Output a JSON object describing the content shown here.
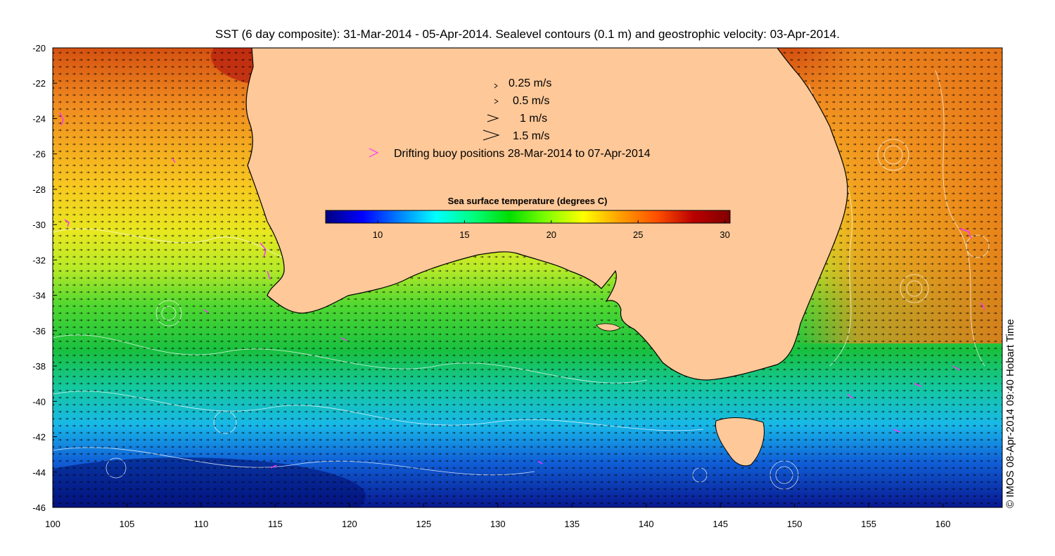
{
  "title": "SST (6 day composite): 31-Mar-2014 - 05-Apr-2014. Sealevel contours (0.1 m) and geostrophic velocity: 03-Apr-2014.",
  "map": {
    "lon_range": [
      100,
      164
    ],
    "lat_range": [
      -46,
      -20
    ],
    "x_ticks": [
      "100",
      "105",
      "110",
      "115",
      "120",
      "125",
      "130",
      "135",
      "140",
      "145",
      "150",
      "155",
      "160"
    ],
    "y_ticks": [
      "-20",
      "-22",
      "-24",
      "-26",
      "-28",
      "-30",
      "-32",
      "-34",
      "-36",
      "-38",
      "-40",
      "-42",
      "-44",
      "-46"
    ],
    "land_color": "#fec898",
    "contour_color": "#ffffff",
    "arrow_color": "#000000",
    "buoy_color": "#ff33ff"
  },
  "legend": {
    "items": [
      {
        "label": "0.25 m/s",
        "scale": 0.25
      },
      {
        "label": "0.5 m/s",
        "scale": 0.5
      },
      {
        "label": "1 m/s",
        "scale": 1
      },
      {
        "label": "1.5 m/s",
        "scale": 1.5
      }
    ],
    "buoy_label": "Drifting buoy positions 28-Mar-2014 to 07-Apr-2014"
  },
  "colorbar": {
    "title": "Sea surface temperature (degrees C)",
    "range": [
      7,
      30.3
    ],
    "ticks": [
      "10",
      "15",
      "20",
      "25",
      "30"
    ],
    "colors": [
      "#00007f",
      "#0000ff",
      "#0080ff",
      "#00ffff",
      "#00ff80",
      "#00dd00",
      "#80ff00",
      "#ffff00",
      "#ffa000",
      "#ff5000",
      "#bb0000",
      "#800000"
    ]
  },
  "copyright": "© IMOS 08-Apr-2014 09:40 Hobart Time"
}
